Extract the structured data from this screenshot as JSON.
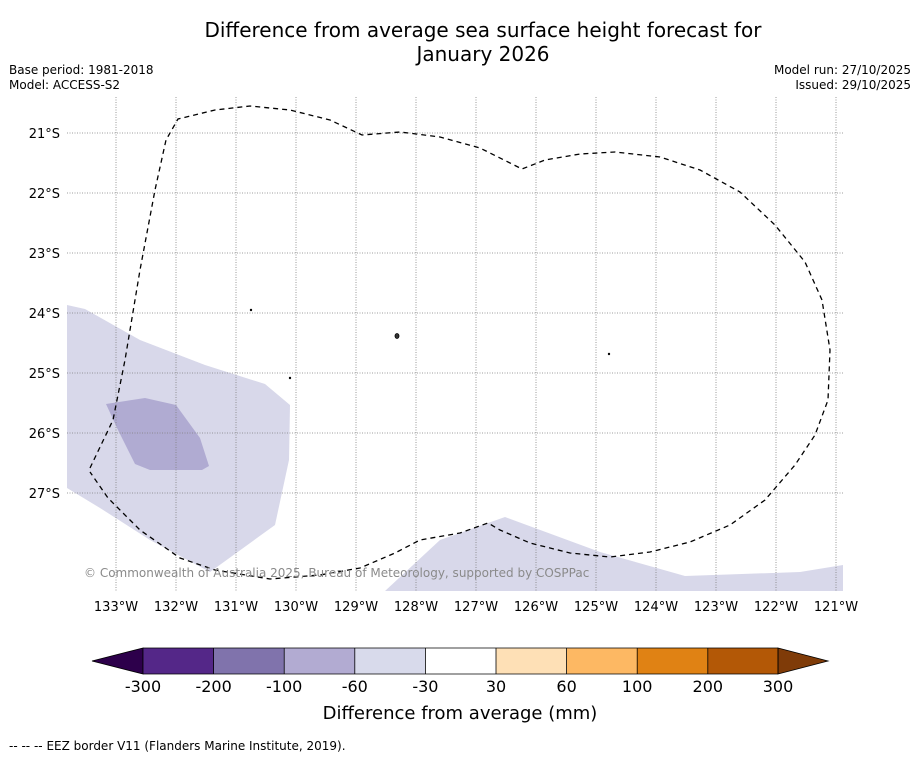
{
  "title": {
    "line1": "Difference from average sea surface height forecast for",
    "line2": "January 2026"
  },
  "meta": {
    "base_period": "Base period: 1981-2018",
    "model": "Model: ACCESS-S2",
    "model_run": "Model run: 27/10/2025",
    "issued": "Issued: 29/10/2025"
  },
  "map": {
    "latitude_labels": [
      "21°S",
      "22°S",
      "23°S",
      "24°S",
      "25°S",
      "26°S",
      "27°S"
    ],
    "longitude_labels": [
      "133°W",
      "132°W",
      "131°W",
      "130°W",
      "129°W",
      "128°W",
      "127°W",
      "126°W",
      "125°W",
      "124°W",
      "123°W",
      "122°W",
      "121°W"
    ],
    "attribution": "© Commonwealth of Australia 2025, Bureau of Meteorology, supported by COSPPac",
    "colors": {
      "light_purple": "#d8d8ea",
      "mid_purple": "#b0abd2",
      "grid": "#7f7f7f",
      "border": "#000000"
    }
  },
  "colorbar": {
    "tick_labels": [
      "-300",
      "-200",
      "-100",
      "-60",
      "-30",
      "30",
      "60",
      "100",
      "200",
      "300"
    ],
    "colors": {
      "underflow": "#2d004b",
      "bins": [
        "#542788",
        "#8073ac",
        "#b2abd2",
        "#d8daeb",
        "#ffffff",
        "#fee0b6",
        "#fdb863",
        "#e08214",
        "#b35806"
      ],
      "overflow": "#7f3b08"
    },
    "title": "Difference from average (mm)"
  },
  "footer": {
    "legend_glyph": "-- -- --",
    "legend_text": "EEZ border V11 (Flanders Marine Institute, 2019)."
  }
}
